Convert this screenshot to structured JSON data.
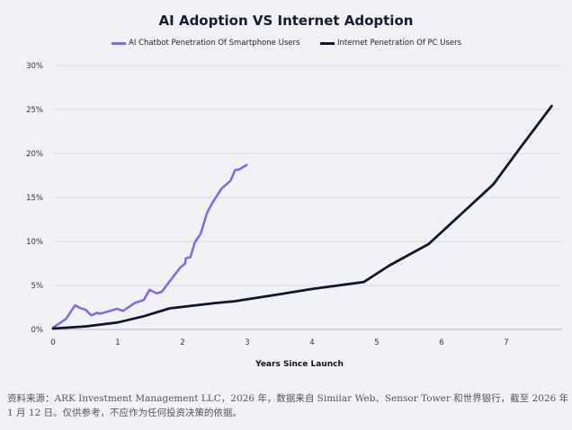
{
  "chart_data": {
    "type": "line",
    "title": "AI Adoption VS Internet Adoption",
    "xlabel": "Years Since Launch",
    "ylabel": "",
    "xlim": [
      0,
      7.8
    ],
    "ylim": [
      0,
      30
    ],
    "x_ticks": [
      "0",
      "1",
      "2",
      "3",
      "4",
      "5",
      "6",
      "7"
    ],
    "x_tick_values": [
      0,
      1,
      2,
      3,
      4,
      5,
      6,
      7
    ],
    "y_ticks": [
      "0%",
      "5%",
      "10%",
      "15%",
      "20%",
      "25%",
      "30%"
    ],
    "y_tick_values": [
      0,
      5,
      10,
      15,
      20,
      25,
      30
    ],
    "grid": "horizontal",
    "legend": "top",
    "series": [
      {
        "name": "AI Chatbot Penetration Of Smartphone Users",
        "color": "#7b68f0",
        "x": [
          0,
          0.2,
          0.34,
          0.43,
          0.5,
          0.59,
          0.68,
          0.73,
          0.99,
          1.08,
          1.26,
          1.4,
          1.49,
          1.6,
          1.68,
          1.82,
          1.96,
          2.04,
          2.05,
          2.12,
          2.19,
          2.28,
          2.38,
          2.47,
          2.6,
          2.74,
          2.81,
          2.88,
          2.99
        ],
        "y": [
          0.2,
          1.2,
          2.75,
          2.4,
          2.25,
          1.6,
          1.9,
          1.8,
          2.35,
          2.1,
          3.0,
          3.35,
          4.5,
          4.1,
          4.3,
          5.65,
          7.0,
          7.5,
          8.1,
          8.2,
          9.9,
          10.9,
          13.3,
          14.5,
          16.0,
          16.9,
          18.1,
          18.2,
          18.7
        ]
      },
      {
        "name": "Internet Penetration Of PC Users",
        "color": "#14142b",
        "x": [
          0,
          0.5,
          1,
          1.4,
          1.8,
          2.5,
          2.8,
          3.5,
          4,
          4.8,
          5.2,
          5.8,
          6.3,
          6.8,
          7.2,
          7.7
        ],
        "y": [
          0.1,
          0.35,
          0.8,
          1.5,
          2.4,
          3.0,
          3.2,
          4.0,
          4.6,
          5.4,
          7.3,
          9.7,
          13.1,
          16.5,
          20.5,
          25.4
        ]
      }
    ]
  },
  "source": "资料来源：ARK Investment Management LLC，2026 年，数据来自 Similar Web、Sensor Tower 和世界银行，截至 2026 年 1 月 12 日。仅供参考，不应作为任何投资决策的依据。"
}
